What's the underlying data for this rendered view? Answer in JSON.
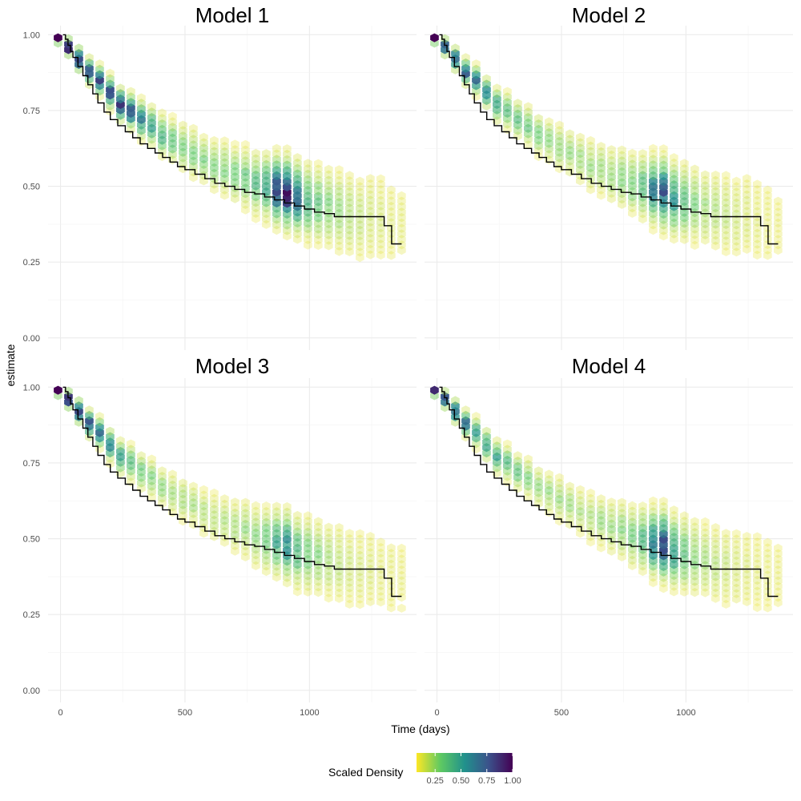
{
  "chart_data": {
    "type": "heatmap",
    "subtype": "faceted hexbin density with step-line overlay",
    "xlabel": "Time (days)",
    "ylabel": "estimate",
    "xlim": [
      -50,
      1430
    ],
    "ylim": [
      -0.04,
      1.03
    ],
    "x_ticks": [
      0,
      500,
      1000
    ],
    "x_tick_labels": [
      "0",
      "500",
      "1000"
    ],
    "y_ticks": [
      0,
      0.25,
      0.5,
      0.75,
      1
    ],
    "y_tick_labels": [
      "0.00",
      "0.25",
      "0.50",
      "0.75",
      "1.00"
    ],
    "grid": true,
    "legend": {
      "title": "Scaled Density",
      "position": "bottom",
      "range": [
        0.07,
        1.0
      ],
      "breaks": [
        0.25,
        0.5,
        0.75,
        1.0
      ],
      "break_labels": [
        "0.25",
        "0.50",
        "0.75",
        "1.00"
      ],
      "colormap": [
        "#fde725",
        "#5ec962",
        "#21918c",
        "#3b528b",
        "#440154"
      ]
    },
    "step_line": {
      "x": [
        10,
        20,
        30,
        40,
        50,
        70,
        90,
        110,
        130,
        150,
        175,
        200,
        230,
        260,
        290,
        320,
        350,
        380,
        410,
        440,
        470,
        500,
        540,
        580,
        620,
        660,
        700,
        740,
        780,
        820,
        860,
        900,
        940,
        980,
        1020,
        1060,
        1100,
        1150,
        1200,
        1250,
        1300,
        1330,
        1370
      ],
      "y": [
        1.0,
        0.985,
        0.965,
        0.945,
        0.925,
        0.895,
        0.865,
        0.835,
        0.805,
        0.775,
        0.745,
        0.72,
        0.7,
        0.68,
        0.66,
        0.64,
        0.625,
        0.61,
        0.595,
        0.58,
        0.565,
        0.555,
        0.54,
        0.525,
        0.51,
        0.5,
        0.49,
        0.48,
        0.475,
        0.465,
        0.455,
        0.445,
        0.435,
        0.425,
        0.415,
        0.41,
        0.4,
        0.4,
        0.4,
        0.4,
        0.37,
        0.31,
        0.31
      ]
    },
    "panels": [
      {
        "title": "Model 1",
        "density": {
          "center_y": [
            0.99,
            0.96,
            0.92,
            0.88,
            0.85,
            0.81,
            0.77,
            0.75,
            0.72,
            0.7,
            0.67,
            0.65,
            0.63,
            0.61,
            0.59,
            0.57,
            0.56,
            0.54,
            0.53,
            0.51,
            0.5,
            0.49,
            0.48,
            0.46,
            0.45,
            0.44,
            0.43,
            0.42,
            0.41,
            0.4,
            0.4,
            0.39,
            0.38,
            0.37
          ],
          "spread": [
            0.01,
            0.015,
            0.02,
            0.022,
            0.024,
            0.026,
            0.028,
            0.03,
            0.032,
            0.034,
            0.036,
            0.038,
            0.04,
            0.042,
            0.044,
            0.046,
            0.048,
            0.05,
            0.052,
            0.054,
            0.056,
            0.058,
            0.06,
            0.062,
            0.065,
            0.068,
            0.07,
            0.075,
            0.08,
            0.085,
            0.09,
            0.095,
            0.1,
            0.11
          ],
          "peak": [
            1.0,
            0.92,
            0.88,
            0.78,
            0.78,
            0.78,
            0.8,
            0.7,
            0.55,
            0.45,
            0.38,
            0.33,
            0.3,
            0.27,
            0.25,
            0.24,
            0.24,
            0.26,
            0.3,
            0.35,
            0.45,
            0.72,
            0.85,
            0.62,
            0.4,
            0.3,
            0.24,
            0.2,
            0.16,
            0.13,
            0.11,
            0.09,
            0.07,
            0.06
          ]
        }
      },
      {
        "title": "Model 2",
        "density": {
          "center_y": [
            0.99,
            0.96,
            0.92,
            0.88,
            0.85,
            0.81,
            0.77,
            0.75,
            0.72,
            0.7,
            0.67,
            0.65,
            0.63,
            0.61,
            0.59,
            0.57,
            0.56,
            0.54,
            0.53,
            0.51,
            0.5,
            0.49,
            0.48,
            0.46,
            0.45,
            0.44,
            0.43,
            0.42,
            0.41,
            0.4,
            0.4,
            0.39,
            0.38,
            0.37
          ],
          "spread": [
            0.01,
            0.015,
            0.02,
            0.022,
            0.024,
            0.026,
            0.028,
            0.03,
            0.032,
            0.034,
            0.036,
            0.038,
            0.04,
            0.042,
            0.044,
            0.046,
            0.048,
            0.05,
            0.052,
            0.054,
            0.056,
            0.058,
            0.06,
            0.062,
            0.065,
            0.068,
            0.07,
            0.075,
            0.08,
            0.085,
            0.09,
            0.095,
            0.1,
            0.11
          ],
          "peak": [
            1.0,
            0.85,
            0.75,
            0.68,
            0.62,
            0.55,
            0.48,
            0.4,
            0.34,
            0.3,
            0.26,
            0.24,
            0.22,
            0.21,
            0.2,
            0.2,
            0.21,
            0.22,
            0.25,
            0.28,
            0.35,
            0.55,
            0.68,
            0.48,
            0.32,
            0.24,
            0.19,
            0.16,
            0.13,
            0.11,
            0.09,
            0.07,
            0.06,
            0.05
          ]
        }
      },
      {
        "title": "Model 3",
        "density": {
          "center_y": [
            0.99,
            0.96,
            0.92,
            0.88,
            0.85,
            0.81,
            0.77,
            0.75,
            0.72,
            0.7,
            0.67,
            0.65,
            0.63,
            0.61,
            0.59,
            0.57,
            0.56,
            0.54,
            0.53,
            0.51,
            0.5,
            0.49,
            0.48,
            0.46,
            0.45,
            0.44,
            0.43,
            0.42,
            0.41,
            0.4,
            0.4,
            0.39,
            0.38,
            0.37
          ],
          "spread": [
            0.01,
            0.015,
            0.02,
            0.022,
            0.024,
            0.026,
            0.028,
            0.03,
            0.032,
            0.034,
            0.036,
            0.038,
            0.04,
            0.042,
            0.044,
            0.046,
            0.048,
            0.05,
            0.052,
            0.054,
            0.056,
            0.058,
            0.06,
            0.062,
            0.065,
            0.068,
            0.07,
            0.075,
            0.08,
            0.085,
            0.09,
            0.095,
            0.1,
            0.11
          ],
          "peak": [
            1.0,
            0.88,
            0.82,
            0.75,
            0.7,
            0.6,
            0.48,
            0.38,
            0.3,
            0.25,
            0.22,
            0.2,
            0.18,
            0.17,
            0.16,
            0.16,
            0.17,
            0.18,
            0.2,
            0.24,
            0.3,
            0.42,
            0.5,
            0.38,
            0.28,
            0.22,
            0.17,
            0.14,
            0.11,
            0.09,
            0.08,
            0.07,
            0.06,
            0.05
          ]
        }
      },
      {
        "title": "Model 4",
        "density": {
          "center_y": [
            0.99,
            0.96,
            0.92,
            0.88,
            0.85,
            0.81,
            0.77,
            0.75,
            0.72,
            0.7,
            0.67,
            0.65,
            0.63,
            0.61,
            0.59,
            0.57,
            0.56,
            0.54,
            0.53,
            0.51,
            0.5,
            0.49,
            0.48,
            0.46,
            0.45,
            0.44,
            0.43,
            0.42,
            0.41,
            0.4,
            0.4,
            0.39,
            0.38,
            0.37
          ],
          "spread": [
            0.01,
            0.015,
            0.02,
            0.022,
            0.024,
            0.026,
            0.028,
            0.03,
            0.032,
            0.034,
            0.036,
            0.038,
            0.04,
            0.042,
            0.044,
            0.046,
            0.048,
            0.05,
            0.052,
            0.054,
            0.056,
            0.058,
            0.06,
            0.062,
            0.065,
            0.068,
            0.07,
            0.075,
            0.08,
            0.085,
            0.09,
            0.095,
            0.1,
            0.11
          ],
          "peak": [
            1.0,
            0.82,
            0.7,
            0.62,
            0.55,
            0.48,
            0.42,
            0.36,
            0.3,
            0.26,
            0.23,
            0.21,
            0.2,
            0.19,
            0.18,
            0.18,
            0.19,
            0.2,
            0.23,
            0.27,
            0.35,
            0.58,
            0.7,
            0.5,
            0.32,
            0.24,
            0.18,
            0.15,
            0.12,
            0.1,
            0.08,
            0.07,
            0.06,
            0.05
          ]
        }
      }
    ]
  }
}
